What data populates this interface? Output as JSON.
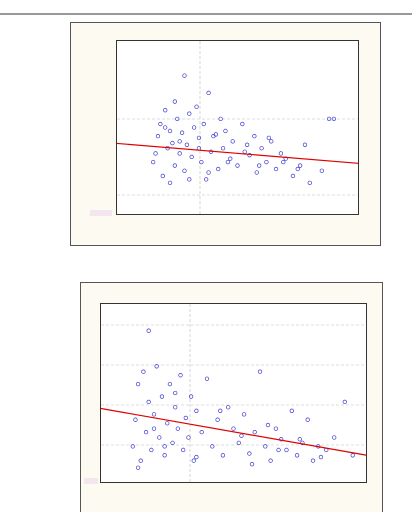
{
  "chart_data": [
    {
      "type": "scatter",
      "color": "#3a3ad0",
      "xlim": [
        0,
        100
      ],
      "ylim": [
        0,
        100
      ],
      "x": [
        15,
        17,
        18,
        19,
        20,
        21,
        22,
        22,
        23,
        24,
        24,
        25,
        26,
        27,
        28,
        28,
        29,
        30,
        31,
        32,
        33,
        34,
        35,
        36,
        37,
        38,
        39,
        40,
        42,
        43,
        44,
        45,
        46,
        48,
        50,
        52,
        54,
        55,
        57,
        58,
        60,
        62,
        64,
        66,
        68,
        70,
        73,
        76,
        78,
        80,
        85,
        88,
        90,
        16,
        20,
        26,
        30,
        34,
        38,
        41,
        47,
        53,
        59,
        63,
        69,
        75
      ],
      "y": [
        30,
        45,
        52,
        22,
        60,
        38,
        48,
        18,
        41,
        65,
        28,
        55,
        35,
        47,
        80,
        25,
        40,
        58,
        33,
        50,
        62,
        44,
        30,
        52,
        20,
        70,
        36,
        45,
        26,
        55,
        38,
        48,
        30,
        42,
        28,
        52,
        40,
        34,
        45,
        24,
        38,
        30,
        42,
        26,
        35,
        32,
        22,
        28,
        40,
        18,
        25,
        55,
        55,
        35,
        50,
        42,
        20,
        38,
        24,
        46,
        32,
        36,
        28,
        44,
        30,
        26
      ],
      "trend": {
        "color": "#e00000",
        "x": [
          0,
          100
        ],
        "y": [
          40.8,
          29.3
        ]
      }
    },
    {
      "type": "scatter",
      "color": "#3a3ad0",
      "xlim": [
        0,
        100
      ],
      "ylim": [
        0,
        100
      ],
      "x": [
        12,
        13,
        14,
        15,
        16,
        17,
        18,
        18,
        19,
        20,
        21,
        22,
        23,
        24,
        25,
        26,
        27,
        28,
        29,
        30,
        31,
        32,
        33,
        34,
        35,
        36,
        38,
        40,
        42,
        44,
        46,
        48,
        50,
        52,
        54,
        56,
        58,
        60,
        62,
        64,
        66,
        68,
        70,
        72,
        74,
        76,
        78,
        80,
        82,
        85,
        88,
        92,
        95,
        14,
        20,
        24,
        28,
        36,
        45,
        53,
        57,
        63,
        67,
        75,
        83
      ],
      "y": [
        20,
        35,
        55,
        12,
        62,
        28,
        85,
        45,
        18,
        38,
        65,
        25,
        48,
        15,
        33,
        55,
        22,
        42,
        30,
        60,
        18,
        36,
        25,
        48,
        12,
        40,
        28,
        58,
        20,
        35,
        15,
        42,
        30,
        22,
        38,
        16,
        28,
        62,
        20,
        12,
        30,
        24,
        18,
        40,
        15,
        22,
        35,
        12,
        20,
        18,
        25,
        45,
        15,
        8,
        30,
        20,
        50,
        14,
        40,
        26,
        10,
        32,
        18,
        24,
        14
      ],
      "trend": {
        "color": "#e00000",
        "x": [
          0,
          100
        ],
        "y": [
          41.3,
          15.1
        ]
      }
    }
  ]
}
